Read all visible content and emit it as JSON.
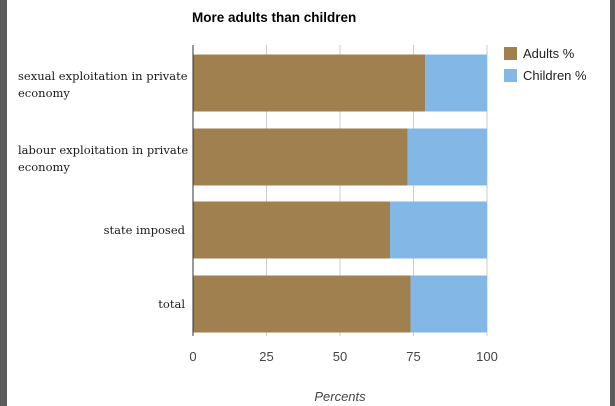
{
  "chart_data": {
    "type": "bar",
    "orientation": "horizontal",
    "stacked": true,
    "title": "More adults than children",
    "xlabel": "Percents",
    "ylabel": "",
    "xlim": [
      0,
      100
    ],
    "x_ticks": [
      0,
      25,
      50,
      75,
      100
    ],
    "grid": true,
    "legend_position": "right",
    "categories": [
      "sexual exploitation in private economy",
      "labour exploitation in private economy",
      "state imposed",
      "total"
    ],
    "series": [
      {
        "name": "Adults %",
        "color": "#a1804f",
        "values": [
          79,
          73,
          67,
          74
        ]
      },
      {
        "name": "Children %",
        "color": "#83b8e6",
        "values": [
          21,
          27,
          33,
          26
        ]
      }
    ]
  }
}
